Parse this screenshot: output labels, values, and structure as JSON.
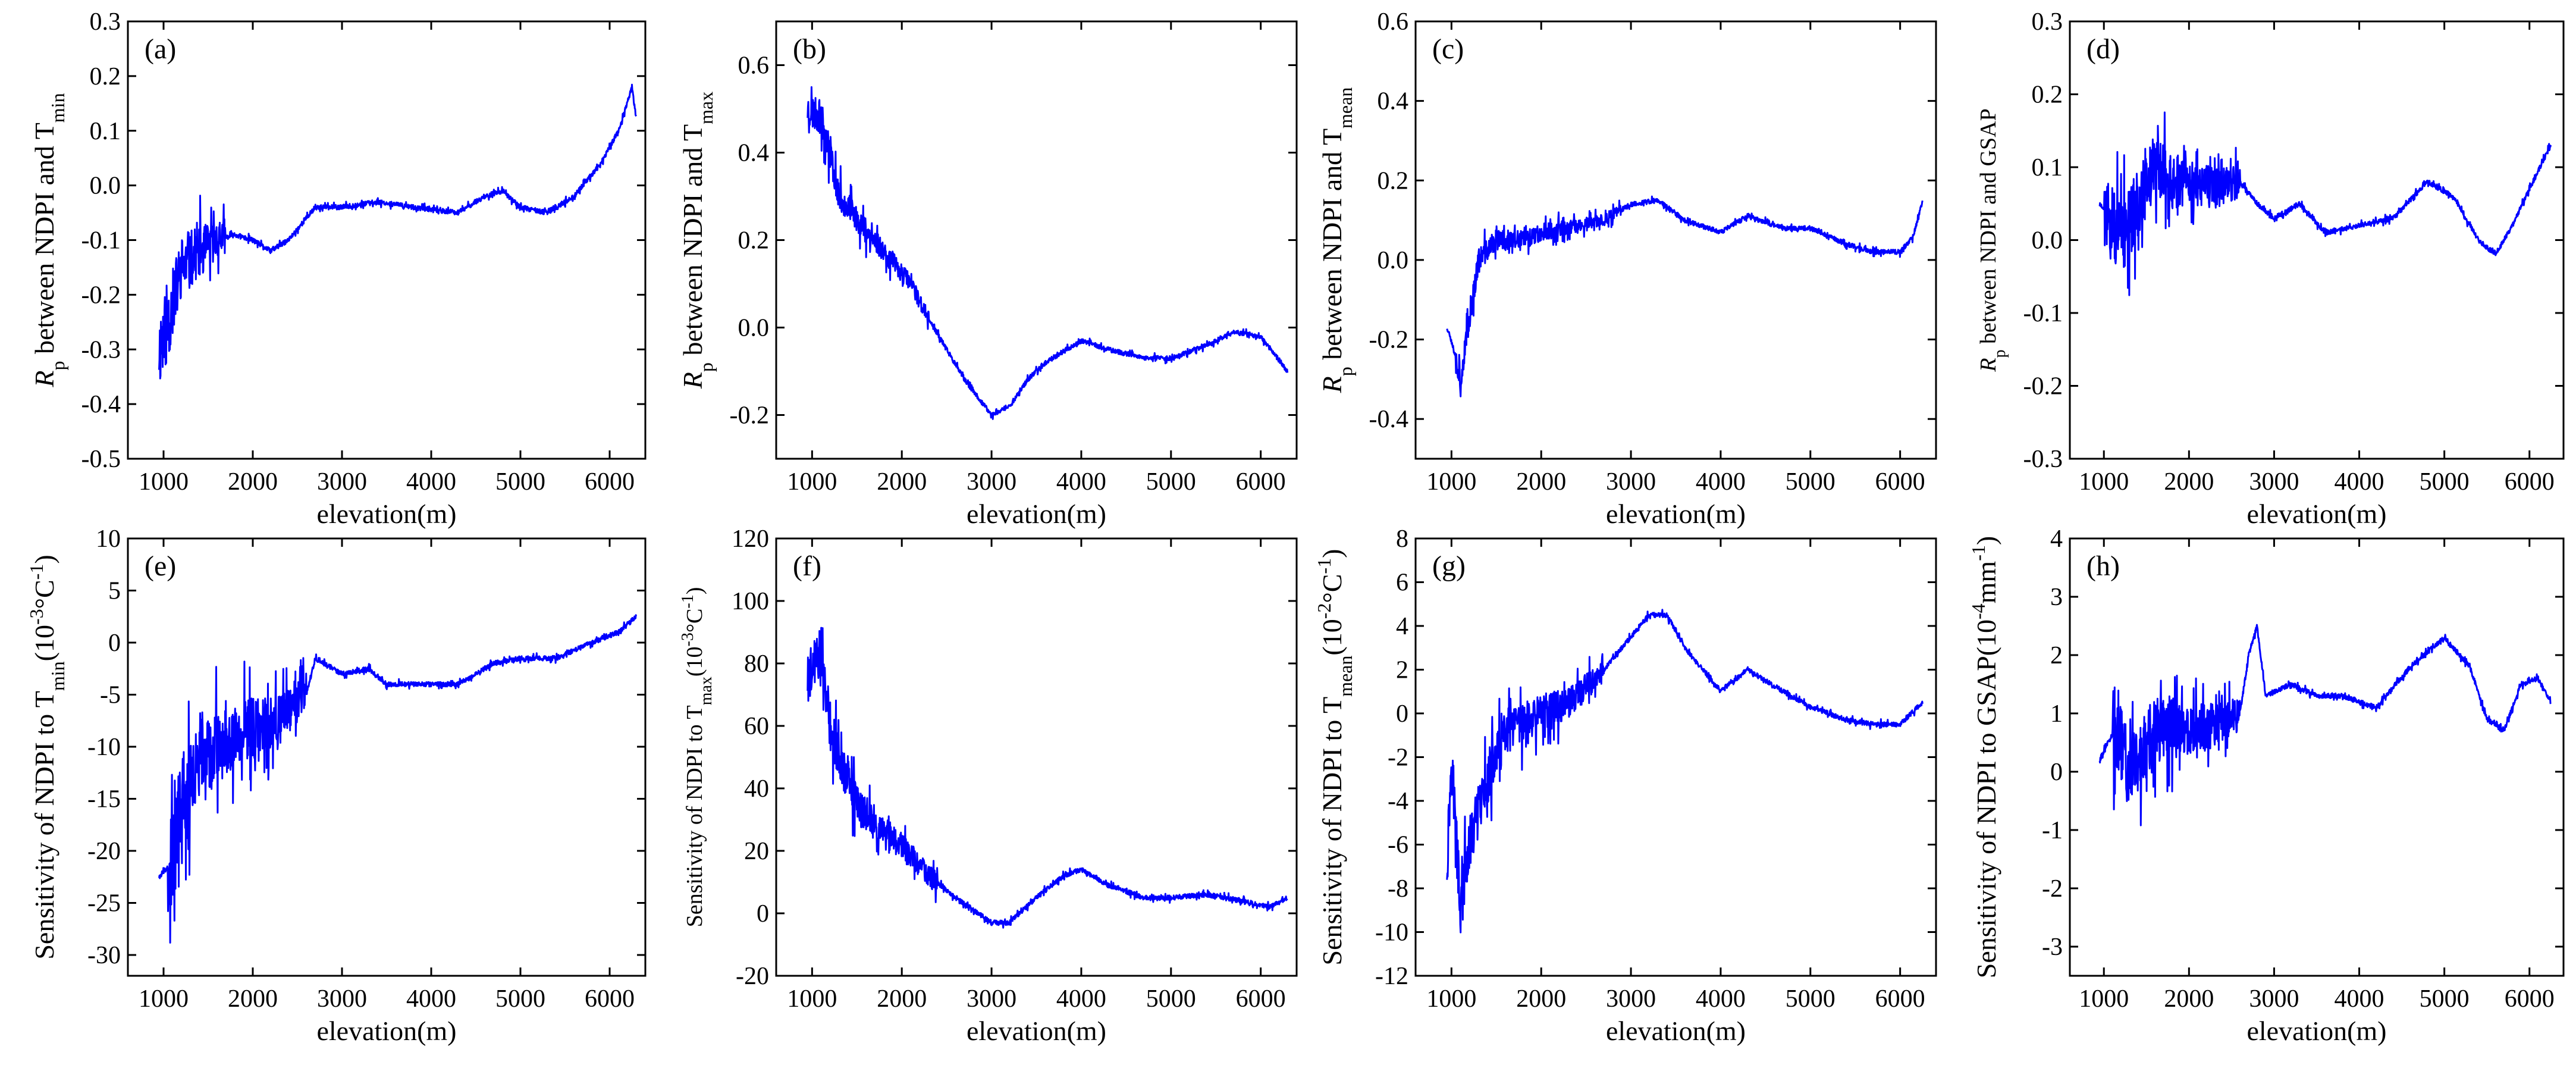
{
  "chart_data": [
    {
      "type": "line",
      "label": "(a)",
      "ylabel_html": "<tspan font-style=\"italic\">R</tspan><tspan baseline-shift=\"sub\" font-size=\"32\">p</tspan><tspan> between NDPI and T</tspan><tspan baseline-shift=\"sub\" font-size=\"32\">min</tspan>",
      "ylabel_parts": [
        "R",
        "p",
        " between NDPI and T",
        "min"
      ],
      "xlabel": "elevation(m)",
      "xlim": [
        600,
        6400
      ],
      "xticks": [
        1000,
        2000,
        3000,
        4000,
        5000,
        6000
      ],
      "ylim": [
        -0.5,
        0.3
      ],
      "yticks": [
        -0.5,
        -0.4,
        -0.3,
        -0.2,
        -0.1,
        0.0,
        0.1,
        0.2,
        0.3
      ],
      "ytick_labels": [
        "-0.5",
        "-0.4",
        "-0.3",
        "-0.2",
        "-0.1",
        "0.0",
        "0.1",
        "0.2",
        "0.3"
      ],
      "noise_range": [
        950,
        1700
      ],
      "noise_amp": 0.16,
      "seed": 11,
      "anchors": [
        [
          950,
          -0.3
        ],
        [
          1050,
          -0.25
        ],
        [
          1200,
          -0.15
        ],
        [
          1400,
          -0.12
        ],
        [
          1600,
          -0.1
        ],
        [
          1800,
          -0.09
        ],
        [
          2000,
          -0.1
        ],
        [
          2200,
          -0.12
        ],
        [
          2400,
          -0.1
        ],
        [
          2600,
          -0.06
        ],
        [
          2700,
          -0.04
        ],
        [
          3000,
          -0.04
        ],
        [
          3400,
          -0.03
        ],
        [
          3800,
          -0.04
        ],
        [
          4300,
          -0.05
        ],
        [
          4600,
          -0.02
        ],
        [
          4800,
          -0.01
        ],
        [
          5000,
          -0.04
        ],
        [
          5300,
          -0.05
        ],
        [
          5600,
          -0.02
        ],
        [
          5900,
          0.04
        ],
        [
          6100,
          0.1
        ],
        [
          6250,
          0.18
        ],
        [
          6300,
          0.12
        ]
      ]
    },
    {
      "type": "line",
      "label": "(b)",
      "ylabel_parts": [
        "R",
        "p",
        " between NDPI and T",
        "max"
      ],
      "xlabel": "elevation(m)",
      "xlim": [
        600,
        6400
      ],
      "xticks": [
        1000,
        2000,
        3000,
        4000,
        5000,
        6000
      ],
      "ylim": [
        -0.3,
        0.7
      ],
      "yticks": [
        -0.2,
        0.0,
        0.2,
        0.4,
        0.6
      ],
      "ytick_labels": [
        "-0.2",
        "0.0",
        "0.2",
        "0.4",
        "0.6"
      ],
      "noise_range": [
        950,
        2300
      ],
      "noise_amp": 0.09,
      "seed": 23,
      "anchors": [
        [
          950,
          0.5
        ],
        [
          1100,
          0.48
        ],
        [
          1200,
          0.4
        ],
        [
          1300,
          0.3
        ],
        [
          1500,
          0.25
        ],
        [
          1700,
          0.2
        ],
        [
          1900,
          0.15
        ],
        [
          2100,
          0.1
        ],
        [
          2300,
          0.02
        ],
        [
          2500,
          -0.05
        ],
        [
          2700,
          -0.12
        ],
        [
          3000,
          -0.2
        ],
        [
          3200,
          -0.18
        ],
        [
          3400,
          -0.12
        ],
        [
          3600,
          -0.08
        ],
        [
          4000,
          -0.03
        ],
        [
          4300,
          -0.05
        ],
        [
          4700,
          -0.07
        ],
        [
          5000,
          -0.07
        ],
        [
          5400,
          -0.04
        ],
        [
          5700,
          -0.01
        ],
        [
          6000,
          -0.02
        ],
        [
          6300,
          -0.1
        ]
      ]
    },
    {
      "type": "line",
      "label": "(c)",
      "ylabel_parts": [
        "R",
        "p",
        " between NDPI and T",
        "mean"
      ],
      "xlabel": "elevation(m)",
      "xlim": [
        600,
        6400
      ],
      "xticks": [
        1000,
        2000,
        3000,
        4000,
        5000,
        6000
      ],
      "ylim": [
        -0.5,
        0.6
      ],
      "yticks": [
        -0.4,
        -0.2,
        0.0,
        0.2,
        0.4,
        0.6
      ],
      "ytick_labels": [
        "-0.4",
        "-0.2",
        "0.0",
        "0.2",
        "0.4",
        "0.6"
      ],
      "noise_range": [
        1050,
        2900
      ],
      "noise_amp": 0.07,
      "seed": 37,
      "anchors": [
        [
          950,
          -0.17
        ],
        [
          1000,
          -0.2
        ],
        [
          1100,
          -0.3
        ],
        [
          1200,
          -0.15
        ],
        [
          1300,
          0.0
        ],
        [
          1500,
          0.05
        ],
        [
          1800,
          0.05
        ],
        [
          2000,
          0.07
        ],
        [
          2300,
          0.08
        ],
        [
          2700,
          0.1
        ],
        [
          3000,
          0.14
        ],
        [
          3300,
          0.15
        ],
        [
          3600,
          0.1
        ],
        [
          4000,
          0.07
        ],
        [
          4300,
          0.11
        ],
        [
          4700,
          0.08
        ],
        [
          5000,
          0.08
        ],
        [
          5400,
          0.04
        ],
        [
          5700,
          0.02
        ],
        [
          6000,
          0.02
        ],
        [
          6150,
          0.06
        ],
        [
          6250,
          0.15
        ]
      ]
    },
    {
      "type": "line",
      "label": "(d)",
      "ylabel_parts": [
        "R",
        "p",
        " between NDPI and GSAP",
        ""
      ],
      "xlabel": "elevation(m)",
      "xlim": [
        600,
        6400
      ],
      "xticks": [
        1000,
        2000,
        3000,
        4000,
        5000,
        6000
      ],
      "ylim": [
        -0.3,
        0.3
      ],
      "yticks": [
        -0.3,
        -0.2,
        -0.1,
        0.0,
        0.1,
        0.2,
        0.3
      ],
      "ytick_labels": [
        "-0.3",
        "-0.2",
        "-0.1",
        "0.0",
        "0.1",
        "0.2",
        "0.3"
      ],
      "noise_range": [
        1000,
        2600
      ],
      "noise_amp": 0.12,
      "seed": 51,
      "anchors": [
        [
          950,
          0.05
        ],
        [
          1100,
          0.02
        ],
        [
          1200,
          0.0
        ],
        [
          1400,
          0.05
        ],
        [
          1600,
          0.1
        ],
        [
          1800,
          0.08
        ],
        [
          2000,
          0.08
        ],
        [
          2300,
          0.07
        ],
        [
          2600,
          0.08
        ],
        [
          2800,
          0.05
        ],
        [
          3000,
          0.03
        ],
        [
          3300,
          0.05
        ],
        [
          3600,
          0.01
        ],
        [
          4000,
          0.02
        ],
        [
          4400,
          0.03
        ],
        [
          4800,
          0.08
        ],
        [
          5100,
          0.06
        ],
        [
          5400,
          0.0
        ],
        [
          5600,
          -0.02
        ],
        [
          5800,
          0.02
        ],
        [
          6000,
          0.07
        ],
        [
          6250,
          0.13
        ]
      ]
    },
    {
      "type": "line",
      "label": "(e)",
      "ylabel_parts": [
        "Sensitivity of NDPI to T",
        "min",
        "(10",
        "-3",
        "°C",
        "-1",
        ")"
      ],
      "xlabel": "elevation(m)",
      "xlim": [
        600,
        6400
      ],
      "xticks": [
        1000,
        2000,
        3000,
        4000,
        5000,
        6000
      ],
      "ylim": [
        -32,
        10
      ],
      "yticks": [
        -30,
        -25,
        -20,
        -15,
        -10,
        -5,
        0,
        5,
        10
      ],
      "ytick_labels": [
        "-30",
        "-25",
        "-20",
        "-15",
        "-10",
        "-5",
        "0",
        "5",
        "10"
      ],
      "noise_range": [
        1050,
        2600
      ],
      "noise_amp": 10,
      "seed": 67,
      "anchors": [
        [
          950,
          -22.5
        ],
        [
          1100,
          -21
        ],
        [
          1200,
          -15
        ],
        [
          1400,
          -12
        ],
        [
          1600,
          -10
        ],
        [
          1800,
          -9
        ],
        [
          2000,
          -8
        ],
        [
          2300,
          -7.5
        ],
        [
          2600,
          -5
        ],
        [
          2700,
          -1.5
        ],
        [
          3000,
          -3
        ],
        [
          3300,
          -2.5
        ],
        [
          3500,
          -4
        ],
        [
          3800,
          -4
        ],
        [
          4300,
          -4
        ],
        [
          4700,
          -2
        ],
        [
          5000,
          -1.5
        ],
        [
          5400,
          -1.5
        ],
        [
          5800,
          0
        ],
        [
          6100,
          1
        ],
        [
          6300,
          2.5
        ]
      ]
    },
    {
      "type": "line",
      "label": "(f)",
      "ylabel_parts": [
        "Sensitivity of NDPI to T",
        "max",
        "(10",
        "-3",
        "°C",
        "-1",
        ")"
      ],
      "xlabel": "elevation(m)",
      "xlim": [
        600,
        6400
      ],
      "xticks": [
        1000,
        2000,
        3000,
        4000,
        5000,
        6000
      ],
      "ylim": [
        -20,
        120
      ],
      "yticks": [
        -20,
        0,
        20,
        40,
        60,
        80,
        100,
        120
      ],
      "ytick_labels": [
        "-20",
        "0",
        "20",
        "40",
        "60",
        "80",
        "100",
        "120"
      ],
      "noise_range": [
        950,
        2400
      ],
      "noise_amp": 18,
      "seed": 79,
      "anchors": [
        [
          950,
          75
        ],
        [
          1100,
          85
        ],
        [
          1200,
          60
        ],
        [
          1300,
          50
        ],
        [
          1500,
          35
        ],
        [
          1700,
          28
        ],
        [
          2000,
          22
        ],
        [
          2300,
          12
        ],
        [
          2600,
          5
        ],
        [
          3000,
          -3
        ],
        [
          3200,
          -3
        ],
        [
          3500,
          5
        ],
        [
          3800,
          12
        ],
        [
          4000,
          14
        ],
        [
          4300,
          9
        ],
        [
          4700,
          5
        ],
        [
          5000,
          5
        ],
        [
          5400,
          6
        ],
        [
          5800,
          4
        ],
        [
          6100,
          2
        ],
        [
          6300,
          5
        ]
      ]
    },
    {
      "type": "line",
      "label": "(g)",
      "ylabel_parts": [
        "Sensitivity of NDPI to T",
        "mean",
        "(10",
        "-2",
        "°C",
        "-1",
        ")"
      ],
      "xlabel": "elevation(m)",
      "xlim": [
        600,
        6400
      ],
      "xticks": [
        1000,
        2000,
        3000,
        4000,
        5000,
        6000
      ],
      "ylim": [
        -12,
        8
      ],
      "yticks": [
        -12,
        -10,
        -8,
        -6,
        -4,
        -2,
        0,
        2,
        4,
        6,
        8
      ],
      "ytick_labels": [
        "-12",
        "-10",
        "-8",
        "-6",
        "-4",
        "-2",
        "0",
        "2",
        "4",
        "6",
        "8"
      ],
      "noise_range": [
        950,
        2700
      ],
      "noise_amp": 3,
      "seed": 97,
      "anchors": [
        [
          950,
          -7
        ],
        [
          1000,
          -2
        ],
        [
          1100,
          -9
        ],
        [
          1200,
          -6
        ],
        [
          1400,
          -3
        ],
        [
          1600,
          -1
        ],
        [
          1800,
          -0.5
        ],
        [
          2000,
          0
        ],
        [
          2300,
          0.5
        ],
        [
          2600,
          1.5
        ],
        [
          2900,
          3
        ],
        [
          3200,
          4.5
        ],
        [
          3400,
          4.5
        ],
        [
          3600,
          3
        ],
        [
          4000,
          1
        ],
        [
          4300,
          2
        ],
        [
          4700,
          1
        ],
        [
          5000,
          0.3
        ],
        [
          5400,
          -0.3
        ],
        [
          5700,
          -0.5
        ],
        [
          6000,
          -0.5
        ],
        [
          6250,
          0.5
        ]
      ]
    },
    {
      "type": "line",
      "label": "(h)",
      "ylabel_parts": [
        "Sensitivity of  NDPI to GSAP(10",
        "-4",
        "mm",
        "-1",
        ")"
      ],
      "xlabel": "elevation(m)",
      "xlim": [
        600,
        6400
      ],
      "xticks": [
        1000,
        2000,
        3000,
        4000,
        5000,
        6000
      ],
      "ylim": [
        -3.5,
        4
      ],
      "yticks": [
        -3,
        -2,
        -1,
        0,
        1,
        2,
        3,
        4
      ],
      "ytick_labels": [
        "-3",
        "-2",
        "-1",
        "0",
        "1",
        "2",
        "3",
        "4"
      ],
      "noise_range": [
        1100,
        2600
      ],
      "noise_amp": 1.6,
      "seed": 113,
      "anchors": [
        [
          950,
          0.2
        ],
        [
          1050,
          0.5
        ],
        [
          1150,
          0.8
        ],
        [
          1300,
          0.0
        ],
        [
          1500,
          0.5
        ],
        [
          1700,
          0.8
        ],
        [
          2000,
          0.7
        ],
        [
          2300,
          0.8
        ],
        [
          2600,
          1.0
        ],
        [
          2700,
          2.0
        ],
        [
          2800,
          2.5
        ],
        [
          2900,
          1.3
        ],
        [
          3200,
          1.5
        ],
        [
          3500,
          1.3
        ],
        [
          3800,
          1.3
        ],
        [
          4200,
          1.1
        ],
        [
          4600,
          1.8
        ],
        [
          5000,
          2.3
        ],
        [
          5300,
          1.8
        ],
        [
          5500,
          0.9
        ],
        [
          5700,
          0.7
        ],
        [
          5900,
          1.5
        ],
        [
          6100,
          1.6
        ],
        [
          6250,
          1.2
        ]
      ]
    }
  ]
}
